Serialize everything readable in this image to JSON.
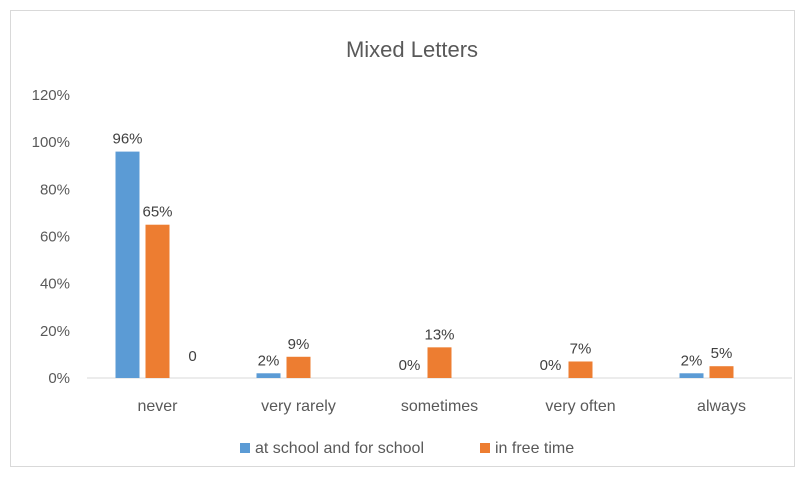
{
  "chart_data": {
    "type": "bar",
    "title": "Mixed Letters",
    "categories": [
      "never",
      "very rarely",
      "sometimes",
      "very often",
      "always"
    ],
    "series": [
      {
        "name": "at school and for school",
        "color": "#5b9bd5",
        "values": [
          96,
          2,
          0,
          0,
          2
        ],
        "labels": [
          "96%",
          "2%",
          "0%",
          "0%",
          "2%"
        ]
      },
      {
        "name": "in free time",
        "color": "#ed7d31",
        "values": [
          65,
          9,
          13,
          7,
          5
        ],
        "labels": [
          "65%",
          "9%",
          "13%",
          "7%",
          "5%"
        ]
      }
    ],
    "extra_labels": [
      {
        "category": "never",
        "text": "0"
      }
    ],
    "yticks": [
      "0%",
      "20%",
      "40%",
      "60%",
      "80%",
      "100%",
      "120%"
    ],
    "ylim": [
      0,
      120
    ],
    "grid": false,
    "legend": "bottom",
    "xlabel": "",
    "ylabel": ""
  }
}
